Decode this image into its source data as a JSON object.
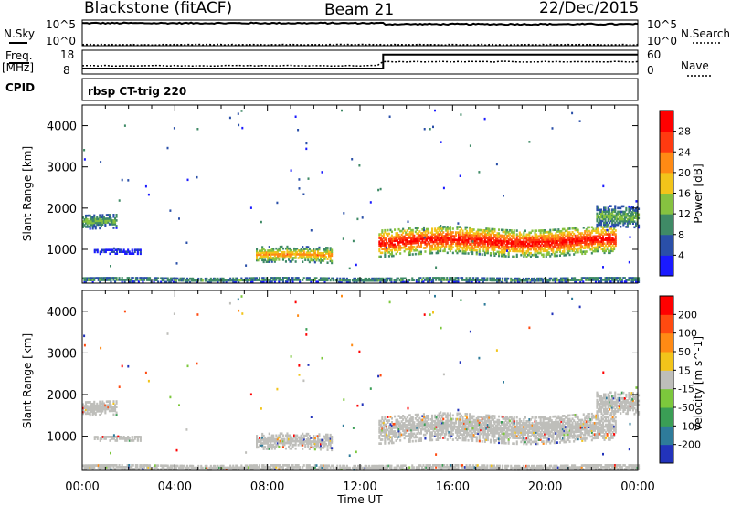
{
  "header": {
    "title": "Blackstone (fitACF)",
    "beam": "Beam 21",
    "date": "22/Dec/2015"
  },
  "param_panels": {
    "noise": {
      "left_label": "N.Sky",
      "right_label": "N.Search",
      "left_ticks": [
        "10^5",
        "10^0"
      ],
      "right_ticks": [
        "10^5",
        "10^0"
      ],
      "scale": "log",
      "range": [
        0,
        5
      ],
      "sky_level": 4.4,
      "search_level": 0.2
    },
    "freq": {
      "left_label": "Freq.",
      "left_unit": "[MHz]",
      "right_label": "Nave",
      "left_ticks": [
        "18",
        "8"
      ],
      "right_ticks": [
        "60",
        "0"
      ],
      "freq_range": [
        8,
        18
      ],
      "nave_range": [
        0,
        60
      ],
      "freq_segments": [
        {
          "start_h": 0.0,
          "end_h": 13.0,
          "value": 10.3
        },
        {
          "start_h": 13.0,
          "end_h": 24.0,
          "value": 16.2
        }
      ]
    },
    "cpid": {
      "label": "CPID",
      "value": "rbsp CT-trig 220"
    }
  },
  "chart_data": [
    {
      "type": "heatmap",
      "name": "Power",
      "ylabel": "Slant Range [km]",
      "xlabel": "",
      "ylim": [
        180,
        4500
      ],
      "xlim": [
        0,
        24
      ],
      "y_ticks": [
        "1000",
        "2000",
        "3000",
        "4000"
      ],
      "colorbar": {
        "label": "Power [dB]",
        "ticks": [
          "4",
          "8",
          "12",
          "16",
          "20",
          "24",
          "28"
        ],
        "range": [
          0,
          32
        ],
        "colors": [
          "#1a1aff",
          "#2a4fa8",
          "#3f8a66",
          "#86c240",
          "#f2c41a",
          "#ff8a14",
          "#ff3a10",
          "#ff0000"
        ]
      },
      "echo_regions": [
        {
          "t0": 0.0,
          "t1": 1.5,
          "r_center": 1650,
          "r_halfwidth": 170,
          "peak_db": 14
        },
        {
          "t0": 0.5,
          "t1": 2.5,
          "r_center": 930,
          "r_halfwidth": 60,
          "peak_db": 4
        },
        {
          "t0": 7.5,
          "t1": 10.8,
          "r_center": 840,
          "r_halfwidth": 180,
          "peak_db": 22
        },
        {
          "t0": 12.8,
          "t1": 23.0,
          "r_center": 1180,
          "r_halfwidth": 330,
          "peak_db": 30
        },
        {
          "t0": 22.2,
          "t1": 24.0,
          "r_center": 1750,
          "r_halfwidth": 250,
          "peak_db": 14
        },
        {
          "t0": 0.0,
          "t1": 24.0,
          "r_center": 250,
          "r_halfwidth": 60,
          "peak_db": 12
        }
      ]
    },
    {
      "type": "heatmap",
      "name": "Velocity",
      "ylabel": "Slant Range [km]",
      "xlabel": "Time UT",
      "ylim": [
        180,
        4500
      ],
      "xlim": [
        0,
        24
      ],
      "y_ticks": [
        "1000",
        "2000",
        "3000",
        "4000"
      ],
      "x_ticks": [
        "00:00",
        "04:00",
        "08:00",
        "12:00",
        "16:00",
        "20:00",
        "00:00"
      ],
      "colorbar": {
        "label": "Velocity [m s^-1]",
        "ticks": [
          "200",
          "100",
          "50",
          "15",
          "-15",
          "-50",
          "-100",
          "-200"
        ],
        "colors": [
          "#2233bb",
          "#2e7b9a",
          "#3a9e55",
          "#7cc83c",
          "#bebeba",
          "#f2c41a",
          "#ff8a14",
          "#ff4a10",
          "#ff0000"
        ]
      },
      "ground_scatter_color": "#bebeba"
    }
  ]
}
